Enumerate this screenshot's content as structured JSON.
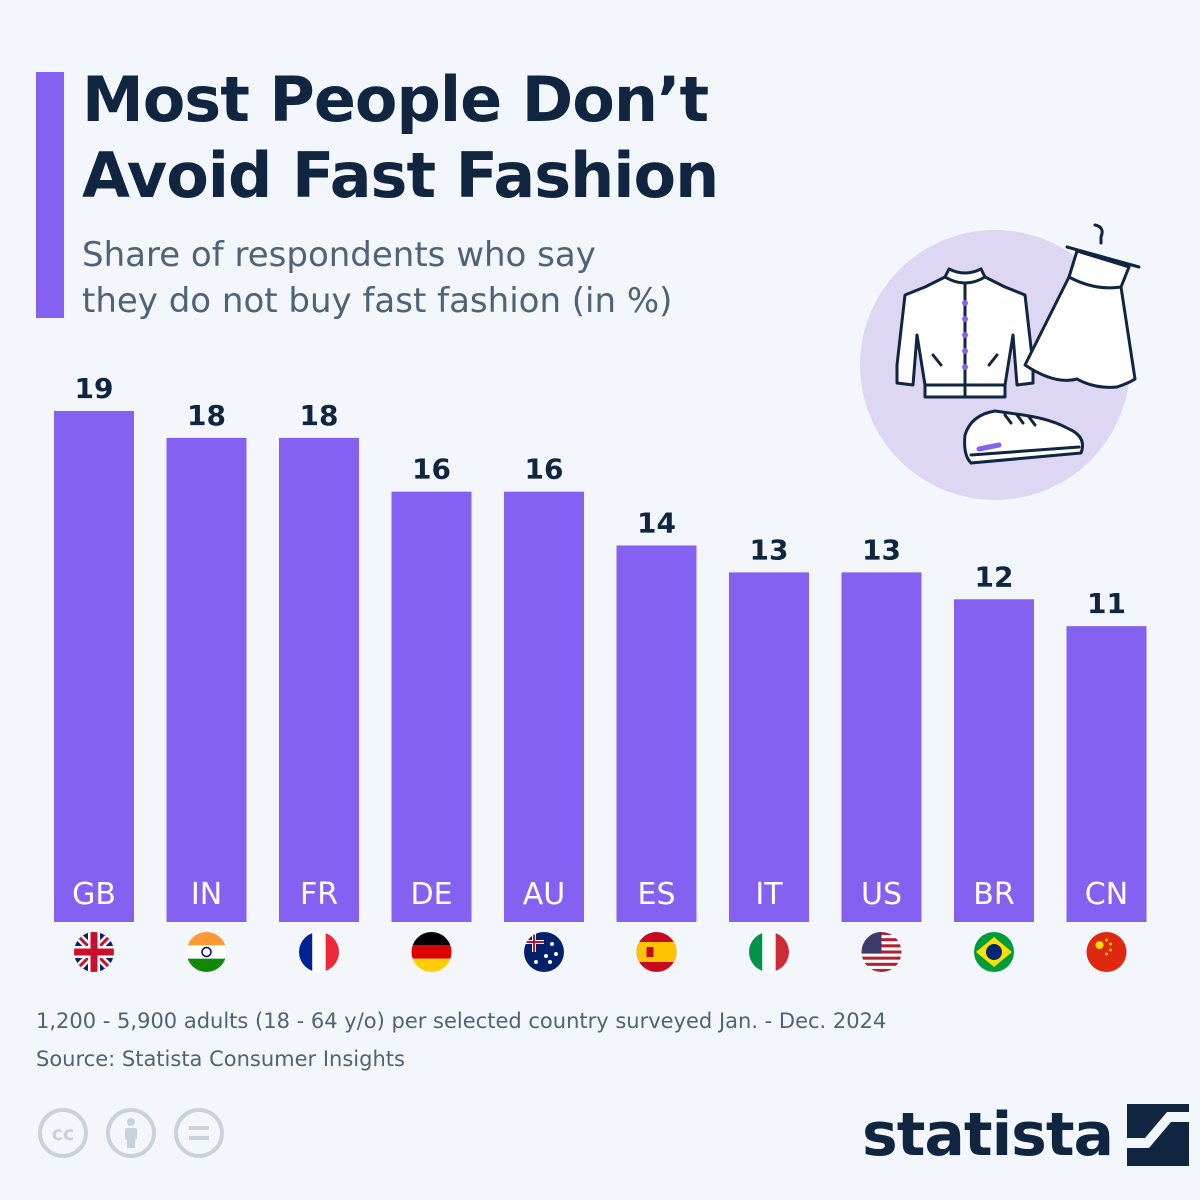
{
  "header": {
    "title_line1": "Most People Don’t",
    "title_line2": "Avoid Fast Fashion",
    "subtitle_line1": "Share of respondents who say",
    "subtitle_line2": "they do not buy fast fashion (in %)"
  },
  "colors": {
    "accent": "#8561f2",
    "bar": "#8561f2",
    "title": "#0f2540",
    "text": "#4e6278",
    "illustration_bg": "#ded7f4"
  },
  "chart_data": {
    "type": "bar",
    "title": "Most People Don’t Avoid Fast Fashion",
    "subtitle": "Share of respondents who say they do not buy fast fashion (in %)",
    "categories": [
      "GB",
      "IN",
      "FR",
      "DE",
      "AU",
      "ES",
      "IT",
      "US",
      "BR",
      "CN"
    ],
    "values": [
      19,
      18,
      18,
      16,
      16,
      14,
      13,
      13,
      12,
      11
    ],
    "flags": [
      "flag-gb-icon",
      "flag-in-icon",
      "flag-fr-icon",
      "flag-de-icon",
      "flag-au-icon",
      "flag-es-icon",
      "flag-it-icon",
      "flag-us-icon",
      "flag-br-icon",
      "flag-cn-icon"
    ],
    "xlabel": "",
    "ylabel": "",
    "ylim": [
      0,
      19
    ],
    "grid": false,
    "legend": "none"
  },
  "footer": {
    "survey_note": "1,200 - 5,900 adults (18 - 64 y/o) per selected country surveyed Jan. - Dec. 2024",
    "source": "Source: Statista Consumer Insights",
    "brand": "statista",
    "license_icons": [
      "cc-icon",
      "attribution-icon",
      "no-derivatives-icon"
    ]
  }
}
